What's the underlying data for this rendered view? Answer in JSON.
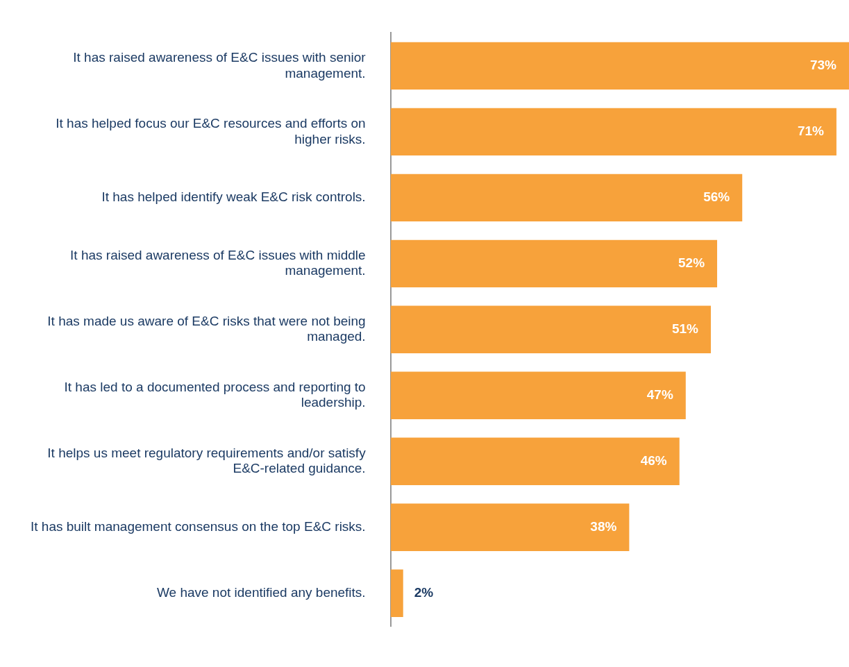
{
  "chart_data": {
    "type": "bar",
    "orientation": "horizontal",
    "categories": [
      "It has raised awareness of E&C issues with senior management.",
      "It has helped focus our E&C resources and efforts on higher risks.",
      "It has helped identify weak E&C risk controls.",
      "It has raised awareness of E&C issues with middle management.",
      "It has made us aware of E&C risks that were not being managed.",
      "It has led to a documented process and reporting to leadership.",
      "It helps us meet regulatory requirements and/or satisfy E&C-related guidance.",
      "It has built management consensus on the top E&C risks.",
      "We have not identified any benefits."
    ],
    "values": [
      73,
      71,
      56,
      52,
      51,
      47,
      46,
      38,
      2
    ],
    "value_labels": [
      "73%",
      "71%",
      "56%",
      "52%",
      "51%",
      "47%",
      "46%",
      "38%",
      "2%"
    ],
    "color": "#f7a23b",
    "xlim": [
      0,
      73
    ],
    "tick_labels": "y",
    "grid": false,
    "legend": false
  }
}
